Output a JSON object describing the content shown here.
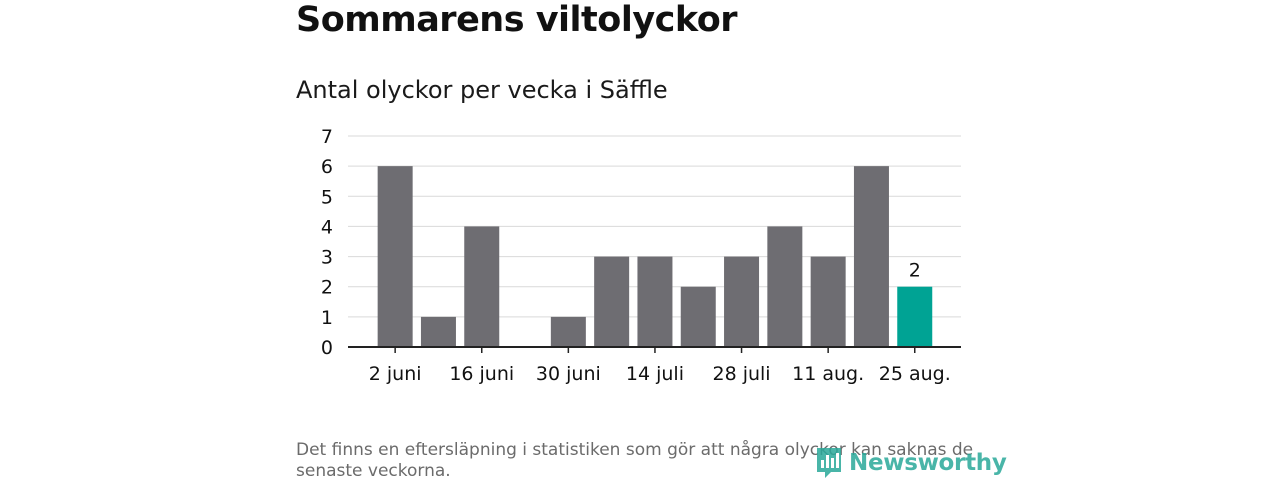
{
  "title": "Sommarens viltolyckor",
  "subtitle": "Antal olyckor per vecka i Säffle",
  "footnote": "Det finns en eftersläpning i statistiken som gör att några olyckor kan saknas de senaste veckorna.",
  "logo_text": "Newsworthy",
  "colors": {
    "bar": "#6e6d72",
    "highlight": "#00a394",
    "grid": "#d9d9d9",
    "axis": "#222222",
    "logo": "#2aa99a"
  },
  "chart_data": {
    "type": "bar",
    "title": "Antal olyckor per vecka i Säffle",
    "xlabel": "",
    "ylabel": "",
    "ylim": [
      0,
      7
    ],
    "yticks": [
      0,
      1,
      2,
      3,
      4,
      5,
      6,
      7
    ],
    "grid": true,
    "categories": [
      "2 juni",
      "9 juni",
      "16 juni",
      "23 juni",
      "30 juni",
      "7 juli",
      "14 juli",
      "21 juli",
      "28 juli",
      "4 aug.",
      "11 aug.",
      "18 aug.",
      "25 aug."
    ],
    "xtick_labels": [
      "2 juni",
      "16 juni",
      "30 juni",
      "14 juli",
      "28 juli",
      "11 aug.",
      "25 aug."
    ],
    "values": [
      6,
      1,
      4,
      0,
      1,
      3,
      3,
      2,
      3,
      4,
      3,
      6,
      2
    ],
    "highlight_index": 12,
    "data_labels": [
      {
        "index": 12,
        "text": "2"
      }
    ]
  }
}
